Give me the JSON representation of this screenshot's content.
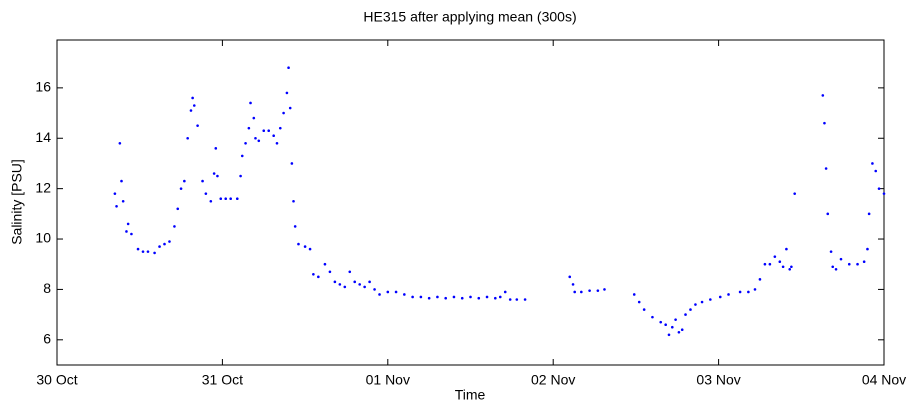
{
  "chart_data": {
    "type": "scatter",
    "title": "HE315 after applying mean (300s)",
    "x_label": "Time",
    "y_label": "Salinity [PSU]",
    "xlim": [
      0,
      5
    ],
    "xticks": [
      {
        "value": 0,
        "label": "30 Oct"
      },
      {
        "value": 1,
        "label": "31 Oct"
      },
      {
        "value": 2,
        "label": "01 Nov"
      },
      {
        "value": 3,
        "label": "02 Nov"
      },
      {
        "value": 4,
        "label": "03 Nov"
      },
      {
        "value": 5,
        "label": "04 Nov"
      }
    ],
    "ylim": [
      5,
      17.9
    ],
    "yticks": [
      6,
      8,
      10,
      12,
      14,
      16
    ],
    "grid": false,
    "color": "#0000ff",
    "x": [
      0.35,
      0.36,
      0.38,
      0.39,
      0.4,
      0.42,
      0.43,
      0.45,
      0.49,
      0.52,
      0.55,
      0.59,
      0.62,
      0.65,
      0.68,
      0.71,
      0.73,
      0.75,
      0.77,
      0.79,
      0.81,
      0.82,
      0.83,
      0.85,
      0.88,
      0.9,
      0.93,
      0.95,
      0.96,
      0.97,
      0.99,
      1.02,
      1.05,
      1.09,
      1.11,
      1.12,
      1.14,
      1.16,
      1.17,
      1.19,
      1.2,
      1.22,
      1.25,
      1.28,
      1.31,
      1.33,
      1.35,
      1.37,
      1.39,
      1.4,
      1.41,
      1.42,
      1.43,
      1.44,
      1.46,
      1.5,
      1.53,
      1.55,
      1.58,
      1.62,
      1.65,
      1.68,
      1.71,
      1.74,
      1.77,
      1.8,
      1.83,
      1.86,
      1.89,
      1.92,
      1.95,
      2.0,
      2.05,
      2.1,
      2.15,
      2.2,
      2.25,
      2.3,
      2.35,
      2.4,
      2.45,
      2.5,
      2.55,
      2.6,
      2.65,
      2.68,
      2.71,
      2.74,
      2.78,
      2.83,
      3.1,
      3.12,
      3.13,
      3.17,
      3.22,
      3.27,
      3.31,
      3.49,
      3.52,
      3.55,
      3.6,
      3.65,
      3.68,
      3.7,
      3.72,
      3.74,
      3.76,
      3.78,
      3.8,
      3.83,
      3.86,
      3.9,
      3.95,
      4.01,
      4.06,
      4.13,
      4.18,
      4.22,
      4.25,
      4.28,
      4.31,
      4.34,
      4.37,
      4.39,
      4.41,
      4.43,
      4.44,
      4.46,
      4.63,
      4.64,
      4.65,
      4.66,
      4.68,
      4.69,
      4.71,
      4.74,
      4.79,
      4.84,
      4.88,
      4.9,
      4.91,
      4.93,
      4.95,
      4.97,
      5.0
    ],
    "values": [
      11.8,
      11.3,
      13.8,
      12.3,
      11.5,
      10.3,
      10.6,
      10.2,
      9.6,
      9.5,
      9.5,
      9.45,
      9.7,
      9.8,
      9.9,
      10.5,
      11.2,
      12.0,
      12.3,
      14.0,
      15.1,
      15.6,
      15.3,
      14.5,
      12.3,
      11.8,
      11.5,
      12.6,
      13.6,
      12.5,
      11.6,
      11.6,
      11.6,
      11.6,
      12.5,
      13.3,
      13.8,
      14.4,
      15.4,
      14.8,
      14.0,
      13.9,
      14.3,
      14.3,
      14.1,
      13.8,
      14.4,
      15.0,
      15.8,
      16.8,
      15.2,
      13.0,
      11.5,
      10.5,
      9.8,
      9.7,
      9.6,
      8.6,
      8.5,
      9.0,
      8.7,
      8.3,
      8.2,
      8.1,
      8.7,
      8.3,
      8.2,
      8.1,
      8.3,
      8.0,
      7.8,
      7.9,
      7.9,
      7.8,
      7.7,
      7.7,
      7.65,
      7.7,
      7.65,
      7.7,
      7.65,
      7.7,
      7.65,
      7.7,
      7.65,
      7.7,
      7.9,
      7.6,
      7.6,
      7.6,
      8.5,
      8.2,
      7.9,
      7.9,
      7.95,
      7.95,
      8.0,
      7.8,
      7.5,
      7.2,
      6.9,
      6.7,
      6.6,
      6.2,
      6.5,
      6.8,
      6.3,
      6.4,
      7.0,
      7.2,
      7.4,
      7.5,
      7.6,
      7.7,
      7.8,
      7.9,
      7.9,
      8.0,
      8.4,
      9.0,
      9.0,
      9.3,
      9.1,
      8.9,
      9.6,
      8.8,
      8.9,
      11.8,
      15.7,
      14.6,
      12.8,
      11.0,
      9.5,
      8.9,
      8.8,
      9.2,
      9.0,
      9.0,
      9.1,
      9.6,
      11.0,
      13.0,
      12.7,
      12.0,
      11.8
    ]
  }
}
